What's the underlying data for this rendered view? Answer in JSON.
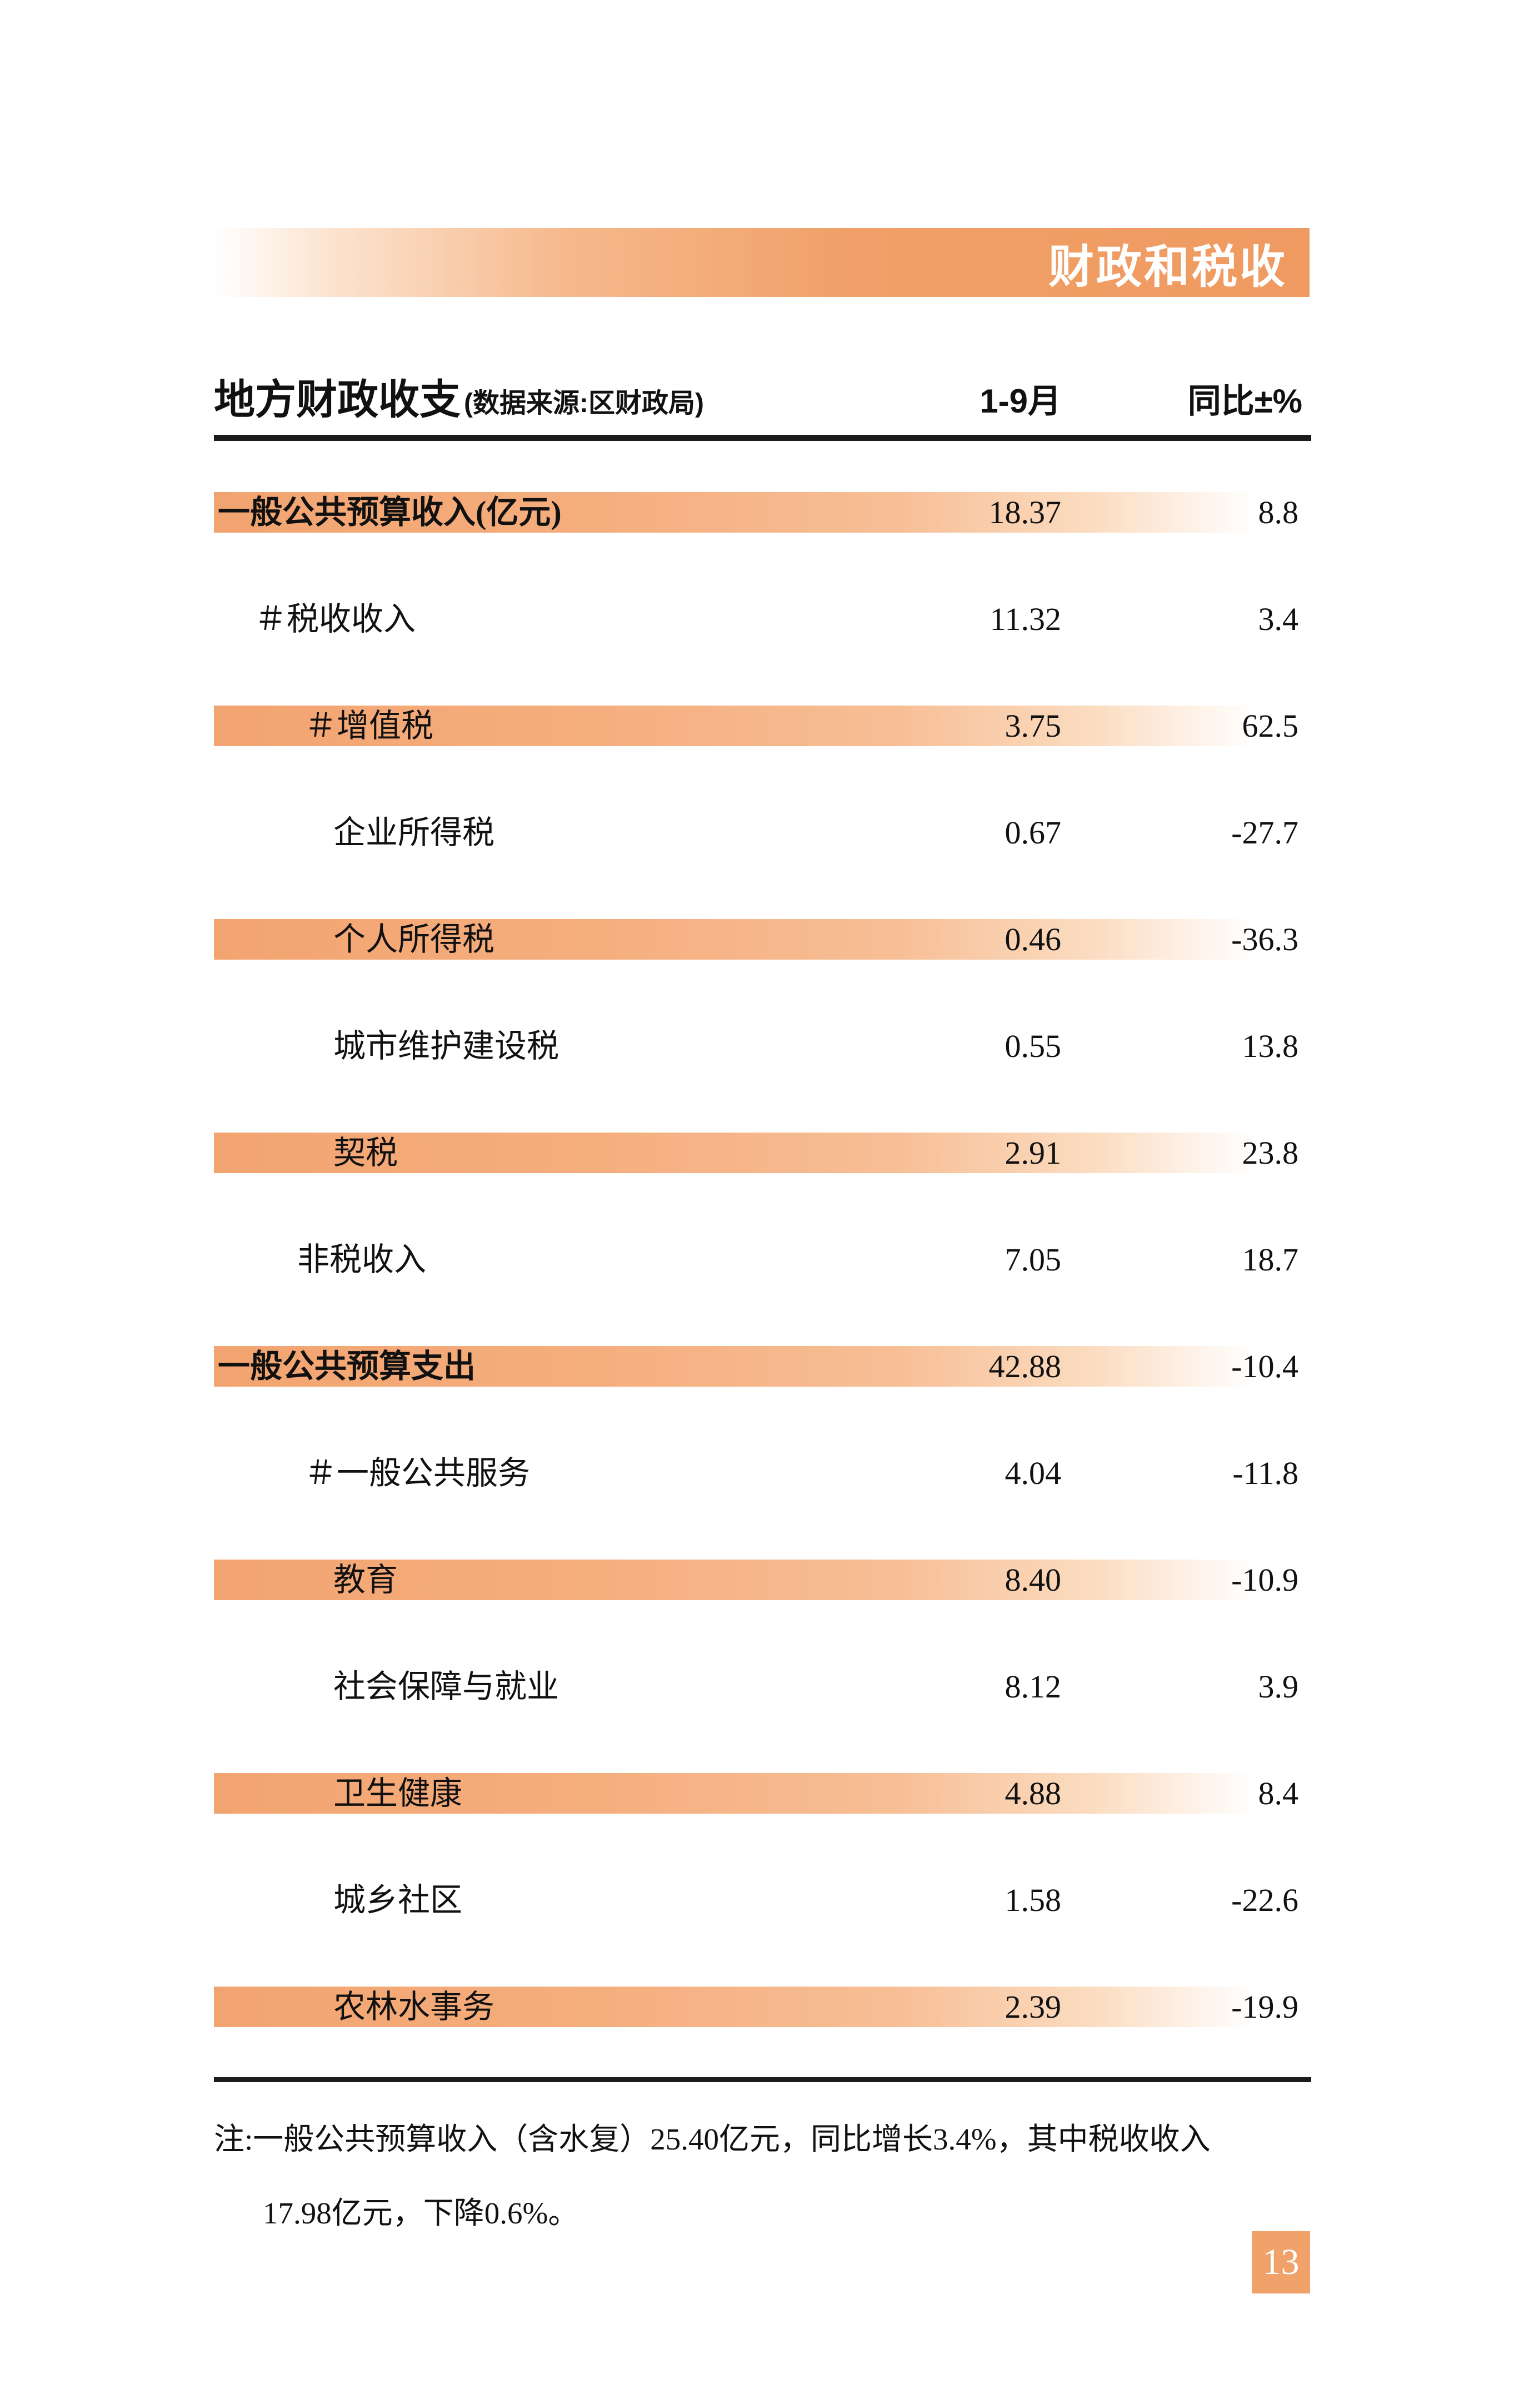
{
  "header": {
    "section_title": "财政和税收"
  },
  "table": {
    "title": "地方财政收支",
    "source_note": "(数据来源:区财政局)",
    "columns": {
      "period": "1-9月",
      "yoy": "同比±%"
    },
    "unit_hint": "亿元",
    "rows": [
      {
        "label": "一般公共预算收入(亿元)",
        "v1": "18.37",
        "v2": "8.8",
        "band": true,
        "level": "0",
        "bold": true
      },
      {
        "label": "＃税收收入",
        "v1": "11.32",
        "v2": "3.4",
        "band": false,
        "level": "1h",
        "bold": false
      },
      {
        "label": "＃增值税",
        "v1": "3.75",
        "v2": "62.5",
        "band": true,
        "level": "2h",
        "bold": false
      },
      {
        "label": "企业所得税",
        "v1": "0.67",
        "v2": "-27.7",
        "band": false,
        "level": "2",
        "bold": false
      },
      {
        "label": "个人所得税",
        "v1": "0.46",
        "v2": "-36.3",
        "band": true,
        "level": "2",
        "bold": false
      },
      {
        "label": "城市维护建设税",
        "v1": "0.55",
        "v2": "13.8",
        "band": false,
        "level": "2",
        "bold": false
      },
      {
        "label": "契税",
        "v1": "2.91",
        "v2": "23.8",
        "band": true,
        "level": "2",
        "bold": false
      },
      {
        "label": "非税收入",
        "v1": "7.05",
        "v2": "18.7",
        "band": false,
        "level": "1p",
        "bold": false
      },
      {
        "label": "一般公共预算支出",
        "v1": "42.88",
        "v2": "-10.4",
        "band": true,
        "level": "0",
        "bold": true
      },
      {
        "label": "＃一般公共服务",
        "v1": "4.04",
        "v2": "-11.8",
        "band": false,
        "level": "2h",
        "bold": false
      },
      {
        "label": "教育",
        "v1": "8.40",
        "v2": "-10.9",
        "band": true,
        "level": "2",
        "bold": false
      },
      {
        "label": "社会保障与就业",
        "v1": "8.12",
        "v2": "3.9",
        "band": false,
        "level": "2",
        "bold": false
      },
      {
        "label": "卫生健康",
        "v1": "4.88",
        "v2": "8.4",
        "band": true,
        "level": "2",
        "bold": false
      },
      {
        "label": "城乡社区",
        "v1": "1.58",
        "v2": "-22.6",
        "band": false,
        "level": "2",
        "bold": false
      },
      {
        "label": "农林水事务",
        "v1": "2.39",
        "v2": "-19.9",
        "band": true,
        "level": "2",
        "bold": false
      }
    ]
  },
  "footnote": {
    "line1": "注:一般公共预算收入（含水复）25.40亿元，同比增长3.4%，其中税收收入",
    "line2": "17.98亿元，下降0.6%。"
  },
  "page_number": "13",
  "colors": {
    "accent_orange": "#EF9A61",
    "band_orange": "#F2A470",
    "badge_orange": "#F1A26B"
  }
}
